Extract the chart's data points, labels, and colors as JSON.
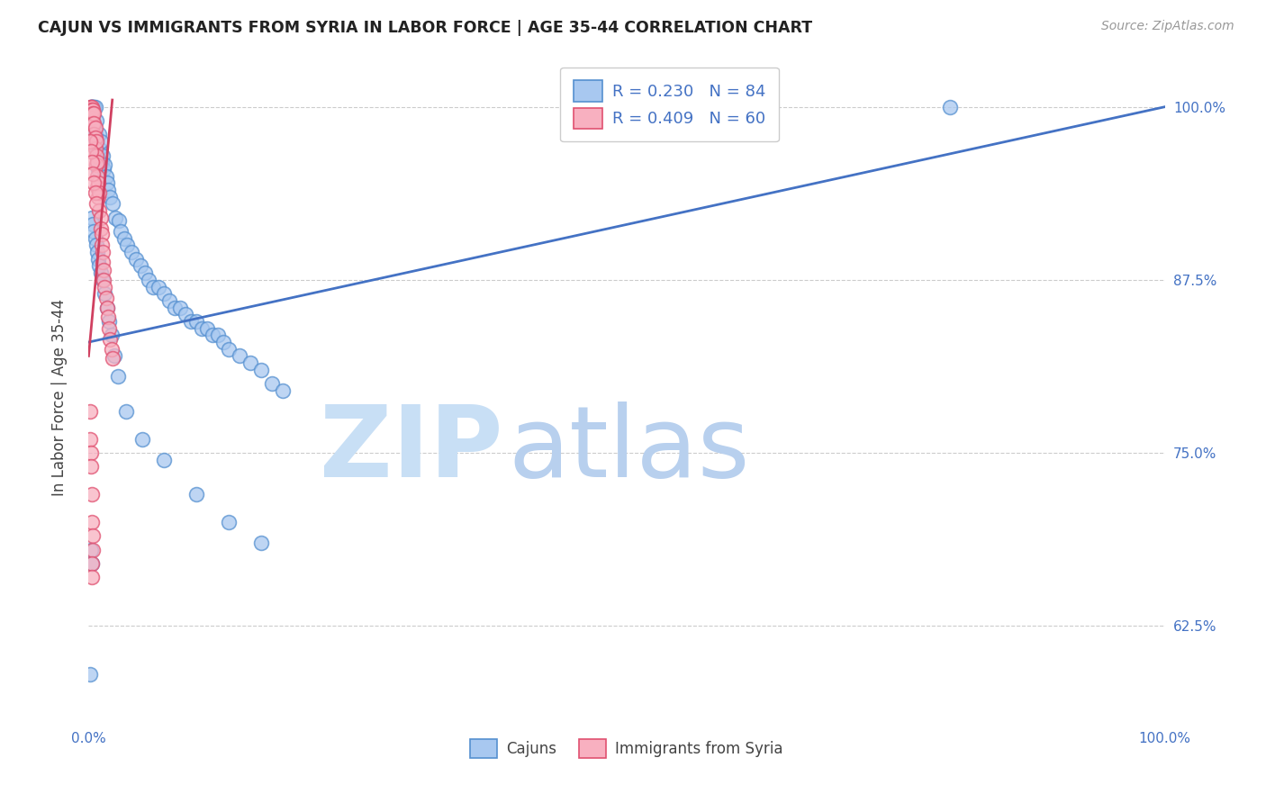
{
  "title": "CAJUN VS IMMIGRANTS FROM SYRIA IN LABOR FORCE | AGE 35-44 CORRELATION CHART",
  "source": "Source: ZipAtlas.com",
  "ylabel": "In Labor Force | Age 35-44",
  "legend_blue_r": "R = 0.230",
  "legend_blue_n": "N = 84",
  "legend_pink_r": "R = 0.409",
  "legend_pink_n": "N = 60",
  "xlim": [
    0.0,
    1.0
  ],
  "ylim": [
    0.555,
    1.025
  ],
  "yticks": [
    0.625,
    0.75,
    0.875,
    1.0
  ],
  "ytick_labels": [
    "62.5%",
    "75.0%",
    "87.5%",
    "100.0%"
  ],
  "blue_face": "#A8C8F0",
  "blue_edge": "#5590D0",
  "pink_face": "#F8B0C0",
  "pink_edge": "#E05070",
  "blue_line": "#4472C4",
  "pink_line": "#D04060",
  "title_color": "#222222",
  "source_color": "#999999",
  "grid_color": "#CCCCCC",
  "ylabel_color": "#444444",
  "tick_color": "#4472C4",
  "cajun_x": [
    0.002,
    0.002,
    0.003,
    0.003,
    0.003,
    0.004,
    0.004,
    0.005,
    0.005,
    0.006,
    0.006,
    0.007,
    0.007,
    0.008,
    0.008,
    0.009,
    0.01,
    0.01,
    0.011,
    0.012,
    0.013,
    0.014,
    0.015,
    0.016,
    0.017,
    0.018,
    0.02,
    0.022,
    0.025,
    0.028,
    0.03,
    0.033,
    0.036,
    0.04,
    0.044,
    0.048,
    0.052,
    0.056,
    0.06,
    0.065,
    0.07,
    0.075,
    0.08,
    0.085,
    0.09,
    0.095,
    0.1,
    0.105,
    0.11,
    0.115,
    0.12,
    0.125,
    0.13,
    0.14,
    0.15,
    0.16,
    0.17,
    0.18,
    0.003,
    0.004,
    0.005,
    0.006,
    0.007,
    0.008,
    0.009,
    0.01,
    0.011,
    0.013,
    0.015,
    0.017,
    0.019,
    0.021,
    0.024,
    0.027,
    0.035,
    0.05,
    0.07,
    0.1,
    0.13,
    0.16,
    0.002,
    0.003,
    0.8,
    0.001
  ],
  "cajun_y": [
    1.0,
    1.0,
    1.0,
    1.0,
    1.0,
    1.0,
    0.99,
    1.0,
    1.0,
    0.98,
    1.0,
    0.99,
    0.975,
    0.968,
    0.96,
    0.955,
    0.98,
    0.97,
    0.975,
    0.96,
    0.965,
    0.955,
    0.958,
    0.95,
    0.945,
    0.94,
    0.935,
    0.93,
    0.92,
    0.918,
    0.91,
    0.905,
    0.9,
    0.895,
    0.89,
    0.885,
    0.88,
    0.875,
    0.87,
    0.87,
    0.865,
    0.86,
    0.855,
    0.855,
    0.85,
    0.845,
    0.845,
    0.84,
    0.84,
    0.835,
    0.835,
    0.83,
    0.825,
    0.82,
    0.815,
    0.81,
    0.8,
    0.795,
    0.92,
    0.915,
    0.91,
    0.905,
    0.9,
    0.895,
    0.89,
    0.885,
    0.88,
    0.875,
    0.865,
    0.855,
    0.845,
    0.835,
    0.82,
    0.805,
    0.78,
    0.76,
    0.745,
    0.72,
    0.7,
    0.685,
    0.68,
    0.67,
    1.0,
    0.59
  ],
  "syria_x": [
    0.001,
    0.001,
    0.002,
    0.002,
    0.002,
    0.003,
    0.003,
    0.003,
    0.004,
    0.004,
    0.004,
    0.005,
    0.005,
    0.005,
    0.006,
    0.006,
    0.006,
    0.007,
    0.007,
    0.007,
    0.008,
    0.008,
    0.008,
    0.009,
    0.009,
    0.01,
    0.01,
    0.011,
    0.011,
    0.012,
    0.012,
    0.013,
    0.013,
    0.014,
    0.014,
    0.015,
    0.016,
    0.017,
    0.018,
    0.019,
    0.02,
    0.021,
    0.022,
    0.001,
    0.002,
    0.003,
    0.004,
    0.005,
    0.006,
    0.007,
    0.001,
    0.001,
    0.002,
    0.002,
    0.003,
    0.003,
    0.004,
    0.004,
    0.003,
    0.003
  ],
  "syria_y": [
    1.0,
    0.998,
    1.0,
    0.998,
    0.995,
    1.0,
    0.998,
    0.992,
    0.998,
    0.995,
    0.988,
    0.995,
    0.988,
    0.98,
    0.985,
    0.978,
    0.97,
    0.975,
    0.965,
    0.958,
    0.96,
    0.95,
    0.942,
    0.945,
    0.935,
    0.938,
    0.925,
    0.92,
    0.912,
    0.908,
    0.9,
    0.895,
    0.888,
    0.882,
    0.875,
    0.87,
    0.862,
    0.855,
    0.848,
    0.84,
    0.832,
    0.825,
    0.818,
    0.975,
    0.968,
    0.96,
    0.952,
    0.945,
    0.938,
    0.93,
    0.78,
    0.76,
    0.75,
    0.74,
    0.72,
    0.7,
    0.69,
    0.68,
    0.67,
    0.66
  ],
  "blue_line_x": [
    0.0,
    1.0
  ],
  "blue_line_y": [
    0.83,
    1.0
  ],
  "pink_line_x": [
    0.0,
    0.022
  ],
  "pink_line_y": [
    0.82,
    1.005
  ]
}
